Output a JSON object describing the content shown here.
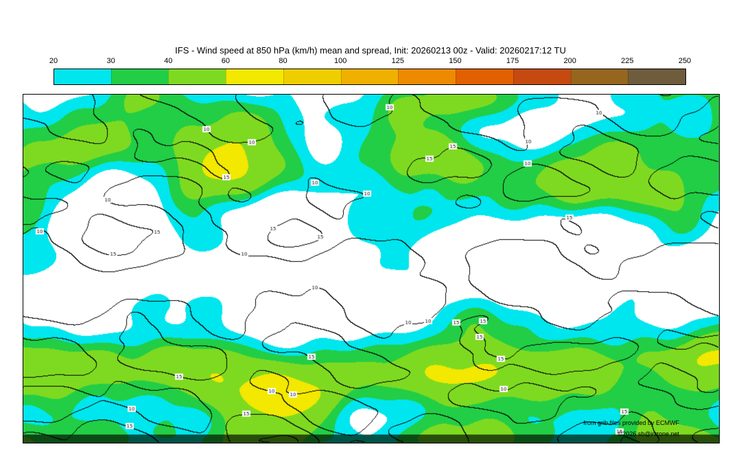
{
  "title": "IFS - Wind speed at 850 hPa (km/h) mean and spread, Init: 20260213 00z - Valid: 20260217:12 TU",
  "colorbar": {
    "tick_labels": [
      "20",
      "30",
      "40",
      "60",
      "80",
      "100",
      "125",
      "150",
      "175",
      "200",
      "225",
      "250"
    ]
  },
  "map": {
    "attribution_line1": "from grib files provided by ECMWF",
    "attribution_line2": "©2026 sb@irizone.net"
  },
  "chart_data": {
    "type": "heatmap",
    "title": "IFS - Wind speed at 850 hPa (km/h) mean and spread",
    "model": "IFS",
    "variable": "Wind speed at 850 hPa",
    "units": "km/h",
    "init": "20260213 00z",
    "valid": "20260217:12 TU",
    "extent": "global",
    "legend_position": "top",
    "colorbar_ticks": [
      20,
      30,
      40,
      60,
      80,
      100,
      125,
      150,
      175,
      200,
      225,
      250
    ],
    "colorbar_colors": [
      "#00E6EE",
      "#22CE46",
      "#7EDA20",
      "#F2E800",
      "#EFCE00",
      "#F0B000",
      "#EE8A00",
      "#E26000",
      "#C64A10",
      "#96661E",
      "#6E5C3C"
    ],
    "background_below_threshold": "#FFFFFF",
    "fill_threshold_min": 20,
    "spread_contour_levels": [
      10,
      15,
      20,
      25
    ],
    "contour_line_color": "#000000"
  }
}
